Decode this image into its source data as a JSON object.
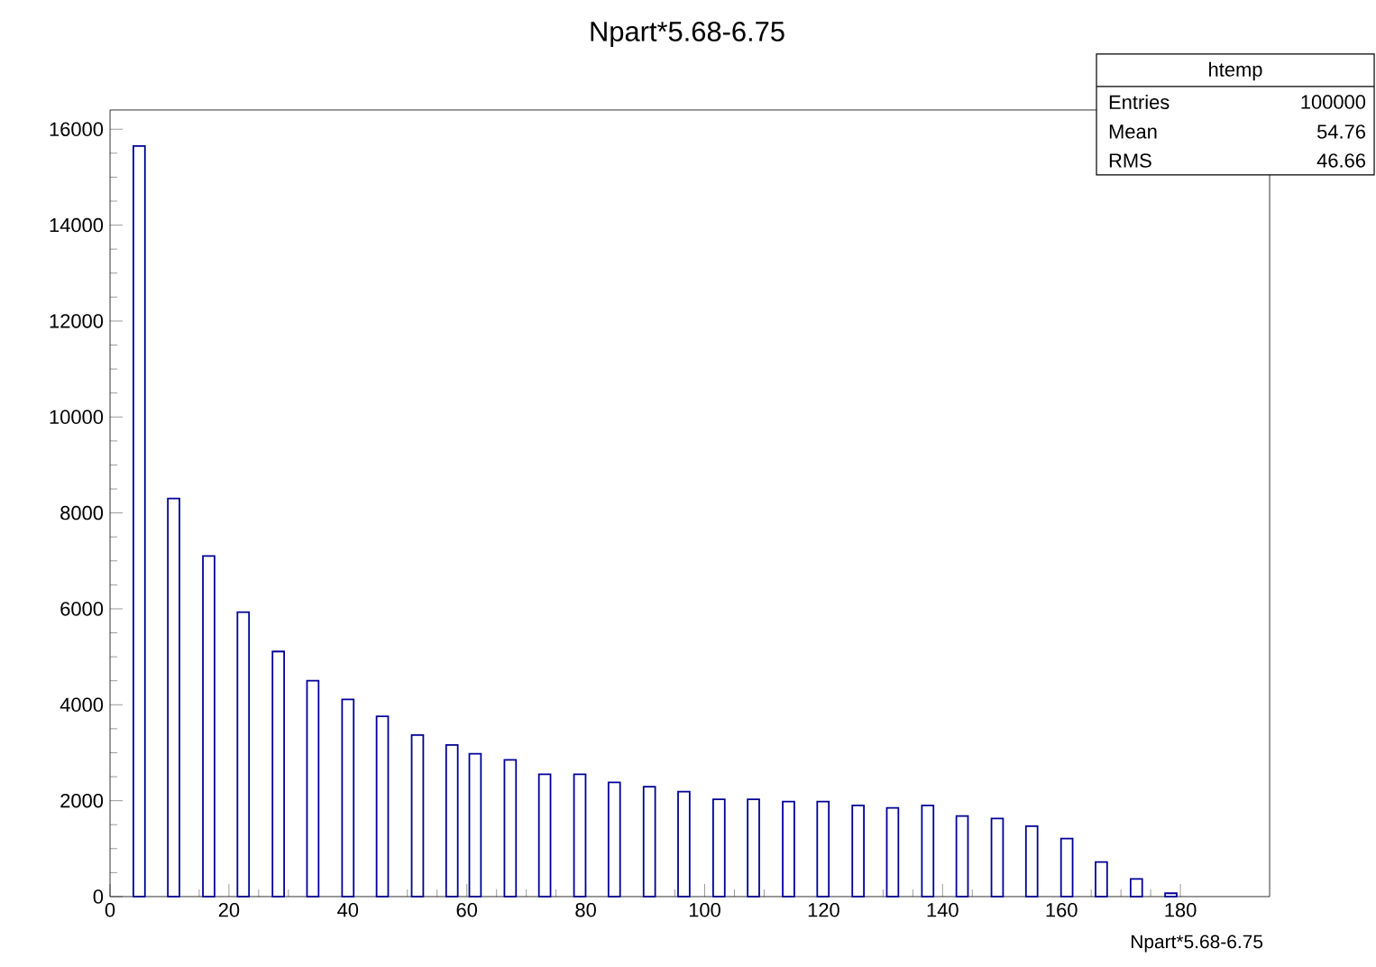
{
  "chart_data": {
    "type": "bar",
    "title": "Npart*5.68-6.75",
    "xlabel": "Npart*5.68-6.75",
    "annotations": [
      "htemp",
      "Entries",
      "100000",
      "Mean",
      "54.76",
      "RMS",
      "46.66"
    ],
    "color": "#000099",
    "x": [
      4.9,
      10.7,
      16.6,
      22.4,
      28.3,
      34.1,
      40.0,
      45.8,
      51.7,
      57.5,
      61.4,
      67.3,
      73.1,
      79.0,
      84.8,
      90.7,
      96.5,
      102.4,
      108.2,
      114.1,
      119.9,
      125.8,
      131.6,
      137.5,
      143.3,
      149.2,
      155.0,
      160.9,
      166.7,
      172.6,
      178.4
    ],
    "values": [
      15650,
      8300,
      7100,
      5930,
      5110,
      4500,
      4110,
      3760,
      3370,
      3160,
      2980,
      2850,
      2550,
      2550,
      2380,
      2290,
      2190,
      2030,
      2030,
      1980,
      1980,
      1900,
      1850,
      1900,
      1680,
      1630,
      1470,
      1210,
      720,
      370,
      70
    ],
    "xlim": [
      0,
      195
    ],
    "ylim": [
      0,
      16400
    ],
    "xticks": [
      0,
      20,
      40,
      60,
      80,
      100,
      120,
      140,
      160,
      180
    ],
    "yticks": [
      0,
      2000,
      4000,
      6000,
      8000,
      10000,
      12000,
      14000,
      16000
    ],
    "grid": false
  }
}
